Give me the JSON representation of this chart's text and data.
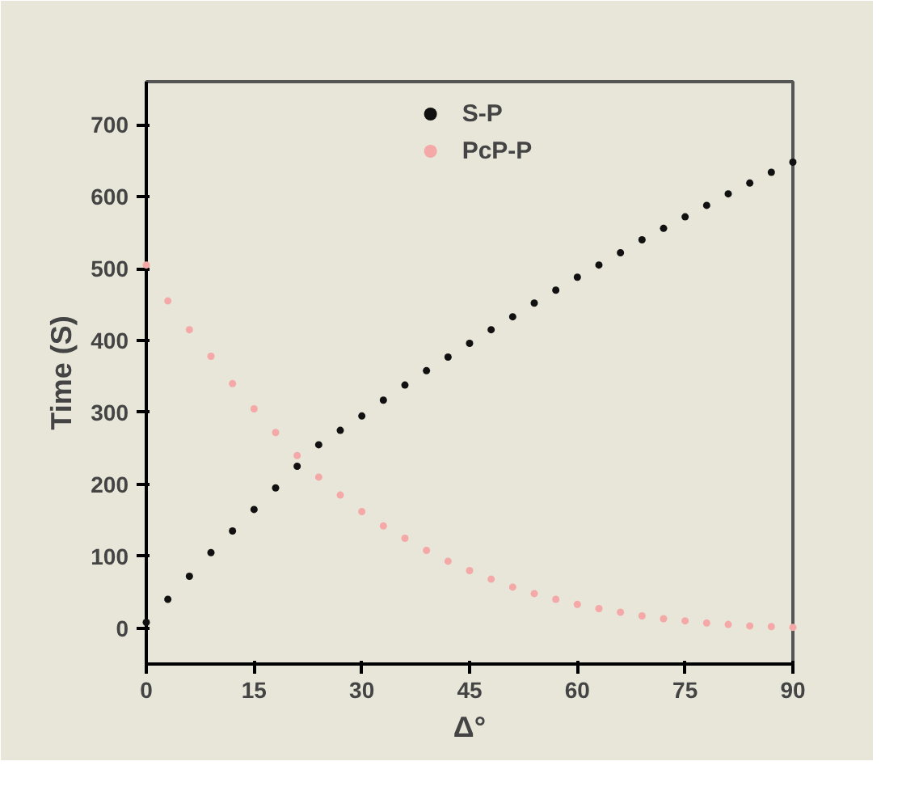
{
  "chart_data": {
    "type": "scatter",
    "xlabel": "Δ°",
    "ylabel": "Time (S)",
    "x": [
      0,
      3,
      6,
      9,
      12,
      15,
      18,
      21,
      24,
      27,
      30,
      33,
      36,
      39,
      42,
      45,
      48,
      51,
      54,
      57,
      60,
      63,
      66,
      69,
      72,
      75,
      78,
      81,
      84,
      87,
      90
    ],
    "series": [
      {
        "name": "S-P",
        "color": "#111111",
        "values": [
          8,
          40,
          72,
          105,
          135,
          165,
          195,
          225,
          255,
          275,
          295,
          317,
          338,
          358,
          377,
          396,
          415,
          433,
          452,
          470,
          488,
          505,
          522,
          540,
          556,
          572,
          588,
          604,
          619,
          634,
          648
        ]
      },
      {
        "name": "PcP-P",
        "color": "#f4a8a8",
        "values": [
          505,
          455,
          415,
          378,
          340,
          305,
          272,
          240,
          210,
          185,
          162,
          142,
          125,
          108,
          93,
          80,
          68,
          57,
          48,
          40,
          33,
          27,
          22,
          17,
          13,
          10,
          7,
          5,
          3,
          2,
          1
        ]
      }
    ],
    "xlim": [
      0,
      90
    ],
    "xticks": [
      0,
      15,
      30,
      45,
      60,
      75,
      90
    ],
    "ylim": [
      -50,
      760
    ],
    "yticks": [
      0,
      100,
      200,
      300,
      400,
      500,
      600,
      700
    ],
    "grid": false,
    "legend": "top",
    "marker": "circle"
  }
}
